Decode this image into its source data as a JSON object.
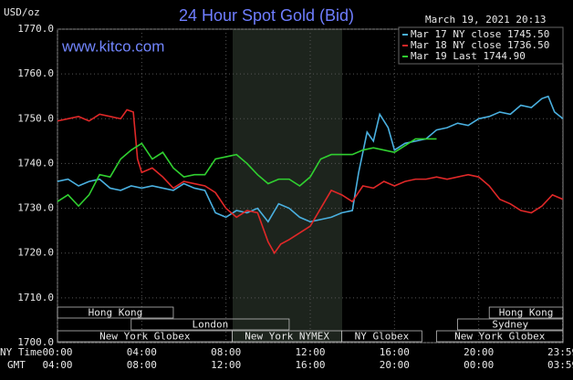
{
  "chart_data": {
    "type": "line",
    "title": "24 Hour Spot Gold (Bid)",
    "y_label": "USD/oz",
    "timestamp": "March 19, 2021 20:13",
    "watermark": "www.kitco.com",
    "x_label": "NY Time",
    "x2_label": "GMT",
    "xlim": [
      0,
      24
    ],
    "ylim": [
      1700,
      1770
    ],
    "xticks": [
      {
        "value": 0,
        "label": "00:00"
      },
      {
        "value": 4,
        "label": "04:00"
      },
      {
        "value": 8,
        "label": "08:00"
      },
      {
        "value": 12,
        "label": "12:00"
      },
      {
        "value": 16,
        "label": "16:00"
      },
      {
        "value": 20,
        "label": "20:00"
      },
      {
        "value": 23.98,
        "label": "23:59"
      }
    ],
    "x2ticks": [
      {
        "value": 0,
        "label": "04:00"
      },
      {
        "value": 4,
        "label": "08:00"
      },
      {
        "value": 8,
        "label": "12:00"
      },
      {
        "value": 12,
        "label": "16:00"
      },
      {
        "value": 16,
        "label": "20:00"
      },
      {
        "value": 20,
        "label": "00:00"
      },
      {
        "value": 23.98,
        "label": "03:59"
      }
    ],
    "yticks": [
      {
        "value": 1700,
        "label": "1700.0"
      },
      {
        "value": 1710,
        "label": "1710.0"
      },
      {
        "value": 1720,
        "label": "1720.0"
      },
      {
        "value": 1730,
        "label": "1730.0"
      },
      {
        "value": 1740,
        "label": "1740.0"
      },
      {
        "value": 1750,
        "label": "1750.0"
      },
      {
        "value": 1760,
        "label": "1760.0"
      },
      {
        "value": 1770,
        "label": "1770.0"
      }
    ],
    "grid": true,
    "legend": "top-right",
    "series": [
      {
        "name": "Mar 17 NY close 1745.50",
        "color": "#4ab0e0",
        "x": [
          0,
          0.5,
          1,
          1.5,
          2,
          2.5,
          3,
          3.5,
          4,
          4.5,
          5,
          5.5,
          6,
          6.5,
          7,
          7.5,
          8,
          8.5,
          9,
          9.5,
          10,
          10.5,
          11,
          11.5,
          12,
          12.5,
          13,
          13.5,
          14,
          14.3,
          14.7,
          15,
          15.3,
          15.7,
          16,
          16.5,
          17,
          17.5,
          18,
          18.5,
          19,
          19.5,
          20,
          20.5,
          21,
          21.5,
          22,
          22.5,
          23,
          23.3,
          23.6,
          24
        ],
        "values": [
          1736,
          1736.5,
          1735,
          1736,
          1736.5,
          1734.5,
          1734,
          1735,
          1734.5,
          1735,
          1734.5,
          1734,
          1735.5,
          1734.5,
          1734,
          1729,
          1728,
          1729.5,
          1729,
          1730,
          1727,
          1731,
          1730,
          1728,
          1727,
          1727.5,
          1728,
          1729,
          1729.5,
          1738,
          1747,
          1745,
          1751,
          1748,
          1743,
          1744.5,
          1745,
          1745.5,
          1747.5,
          1748,
          1749,
          1748.5,
          1750,
          1750.5,
          1751.5,
          1751,
          1753,
          1752.5,
          1754.5,
          1755,
          1751.5,
          1750
        ]
      },
      {
        "name": "Mar 18 NY close 1736.50",
        "color": "#e02828",
        "x": [
          0,
          0.5,
          1,
          1.5,
          2,
          2.5,
          3,
          3.3,
          3.6,
          3.8,
          4,
          4.5,
          5,
          5.5,
          6,
          6.5,
          7,
          7.5,
          8,
          8.5,
          9,
          9.5,
          10,
          10.3,
          10.6,
          11,
          11.5,
          12,
          12.5,
          13,
          13.5,
          14,
          14.5,
          15,
          15.5,
          16,
          16.5,
          17,
          17.5,
          18,
          18.5,
          19,
          19.5,
          20,
          20.5,
          21,
          21.5,
          22,
          22.5,
          23,
          23.5,
          24
        ],
        "values": [
          1749.5,
          1750,
          1750.5,
          1749.5,
          1751,
          1750.5,
          1750,
          1752,
          1751.5,
          1741,
          1738,
          1739,
          1737,
          1734.5,
          1736,
          1735.5,
          1735,
          1733.5,
          1730,
          1728,
          1729.5,
          1729,
          1722.5,
          1720,
          1722,
          1723,
          1724.5,
          1726,
          1730,
          1734,
          1733,
          1731.5,
          1735,
          1734.5,
          1736,
          1735,
          1736,
          1736.5,
          1736.5,
          1737,
          1736.5,
          1737,
          1737.5,
          1737,
          1735,
          1732,
          1731,
          1729.5,
          1729,
          1730.5,
          1733,
          1732
        ]
      },
      {
        "name": "Mar 19 Last 1744.90",
        "color": "#30d030",
        "x": [
          0,
          0.5,
          1,
          1.5,
          2,
          2.5,
          3,
          3.5,
          4,
          4.5,
          5,
          5.5,
          6,
          6.5,
          7,
          7.5,
          8,
          8.5,
          9,
          9.5,
          10,
          10.5,
          11,
          11.5,
          12,
          12.5,
          13,
          13.5,
          14,
          14.5,
          15,
          15.5,
          16,
          16.5,
          17,
          17.5,
          18
        ],
        "values": [
          1731.5,
          1733,
          1730.5,
          1733,
          1737.5,
          1737,
          1741,
          1743,
          1744.5,
          1741,
          1742.5,
          1739,
          1737,
          1737.5,
          1737.5,
          1741,
          1741.5,
          1742,
          1740,
          1737.5,
          1735.5,
          1736.5,
          1736.5,
          1735,
          1737,
          1741,
          1742,
          1742,
          1742,
          1743,
          1743.5,
          1743,
          1742.5,
          1744,
          1745.5,
          1745.5,
          1745.5
        ]
      }
    ],
    "sessions": [
      {
        "label": "Hong Kong",
        "start": 0,
        "end": 5.5
      },
      {
        "label": "London",
        "start": 3.5,
        "end": 11
      },
      {
        "label": "New York Globex",
        "start": 0,
        "end": 8.3
      },
      {
        "label": "New York NYMEX",
        "start": 8.3,
        "end": 13.5
      },
      {
        "label": "NY Globex",
        "start": 13.5,
        "end": 17.3
      },
      {
        "label": "Hong Kong",
        "start": 20.5,
        "end": 24
      },
      {
        "label": "Sydney",
        "start": 19,
        "end": 24
      },
      {
        "label": "New York Globex",
        "start": 18,
        "end": 24
      }
    ]
  }
}
